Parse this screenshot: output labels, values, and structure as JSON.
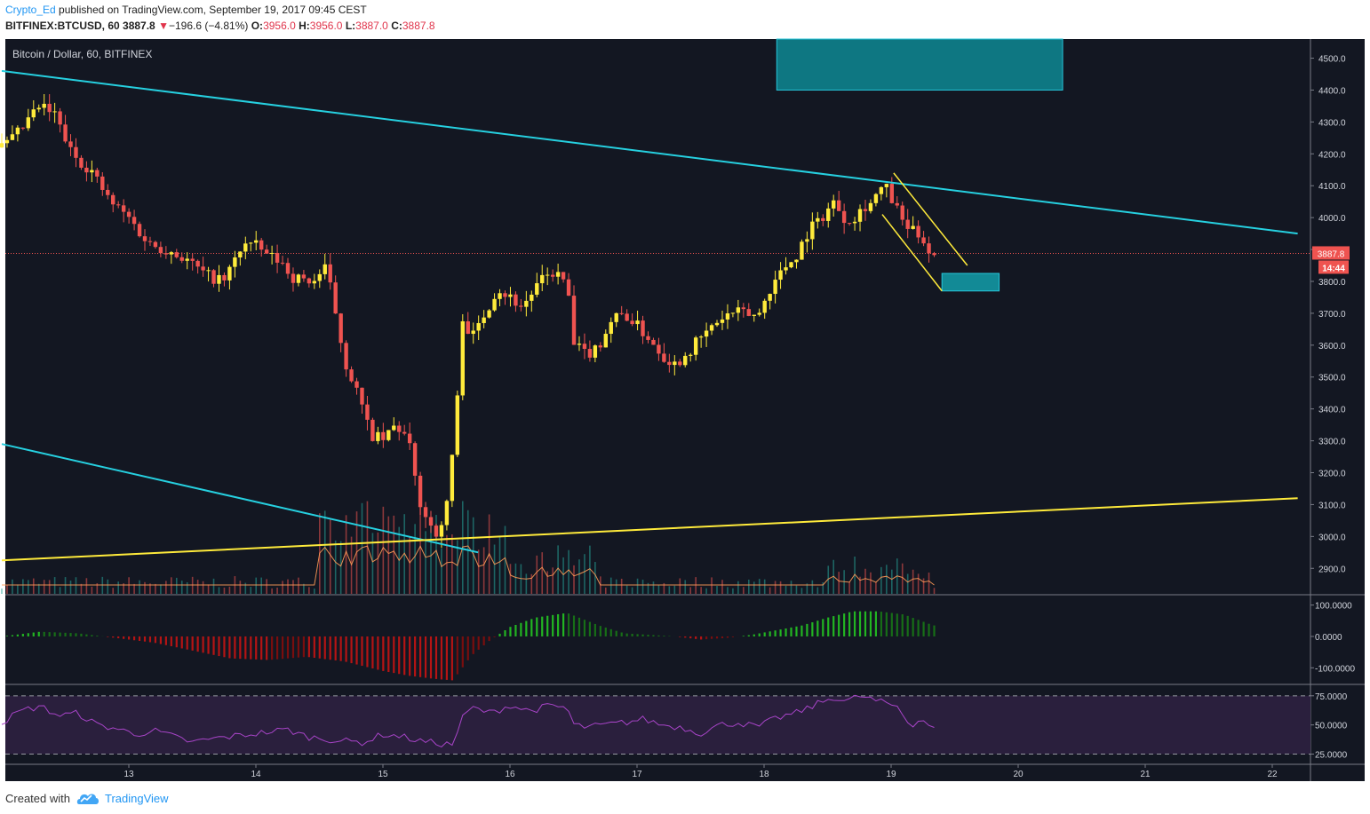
{
  "header": {
    "author": "Crypto_Ed",
    "published_text": "published on TradingView.com, September 19, 2017 09:45 CEST",
    "symbol": "BITFINEX:BTCUSD, 60",
    "last": "3887.8",
    "change": "−196.6 (−4.81%)",
    "ohlc": {
      "o_label": "O:",
      "o": "3956.0",
      "h_label": "H:",
      "h": "3956.0",
      "l_label": "L:",
      "l": "3887.0",
      "c_label": "C:",
      "c": "3887.8"
    }
  },
  "chart_title": "Bitcoin / Dollar, 60, BITFINEX",
  "price_tag": {
    "value": "3887.8",
    "countdown": "14:44"
  },
  "footer": {
    "created": "Created with",
    "brand": "TradingView"
  },
  "colors": {
    "background": "#131722",
    "up": "#ffeb3b",
    "down": "#ef5350",
    "trendline_cyan": "#26d0e0",
    "trendline_yellow": "#ffeb3b",
    "box_teal": "#0e7782",
    "rsi_band": "#2a1f3d",
    "rsi_line": "#a844c8",
    "macd_pos": "#1e9e1e",
    "macd_neg": "#a01010"
  },
  "chart_data": [
    {
      "type": "candlestick",
      "title": "Bitcoin / Dollar, 60, BITFINEX",
      "xlabel": "",
      "ylabel": "",
      "x_tick_labels": [
        "13",
        "14",
        "15",
        "16",
        "17",
        "18",
        "19",
        "20",
        "21",
        "22"
      ],
      "ylim": [
        2820,
        4560
      ],
      "y_tick_labels": [
        "4500.0",
        "4400.0",
        "4300.0",
        "4200.0",
        "4100.0",
        "4000.0",
        "3900.0",
        "3800.0",
        "3700.0",
        "3600.0",
        "3500.0",
        "3400.0",
        "3300.0",
        "3200.0",
        "3100.0",
        "3000.0",
        "2900.0"
      ],
      "y_ticks": [
        4500,
        4400,
        4300,
        4200,
        4100,
        4000,
        3900,
        3800,
        3700,
        3600,
        3500,
        3400,
        3300,
        3200,
        3100,
        3000,
        2900
      ],
      "close_path_days": [
        12.0,
        12.1,
        12.2,
        12.3,
        12.42,
        12.55,
        12.7,
        12.85,
        13.0,
        13.15,
        13.3,
        13.45,
        13.6,
        13.75,
        13.9,
        14.0,
        14.1,
        14.2,
        14.3,
        14.45,
        14.55,
        14.6,
        14.7,
        14.8,
        14.9,
        15.0,
        15.1,
        15.2,
        15.28,
        15.35,
        15.45,
        15.5,
        15.58,
        15.62,
        15.7,
        15.8,
        15.9,
        16.0,
        16.1,
        16.2,
        16.3,
        16.35,
        16.45,
        16.5,
        16.6,
        16.7,
        16.8,
        16.9,
        17.0,
        17.1,
        17.2,
        17.3,
        17.45,
        17.55,
        17.65,
        17.75,
        17.85,
        17.95,
        18.05,
        18.15,
        18.25,
        18.35,
        18.45,
        18.55,
        18.6,
        18.65,
        18.7,
        18.8,
        18.85,
        18.9,
        18.95,
        19.0,
        19.05,
        19.1,
        19.15,
        19.2,
        19.25,
        19.3,
        19.35
      ],
      "close_path_prices": [
        4220,
        4250,
        4300,
        4350,
        4320,
        4200,
        4150,
        4050,
        4000,
        3920,
        3900,
        3870,
        3820,
        3800,
        3920,
        3910,
        3880,
        3860,
        3810,
        3800,
        3840,
        3760,
        3550,
        3450,
        3320,
        3300,
        3350,
        3300,
        3120,
        3050,
        3000,
        3100,
        3380,
        3700,
        3620,
        3700,
        3780,
        3750,
        3720,
        3780,
        3820,
        3830,
        3790,
        3600,
        3570,
        3600,
        3680,
        3700,
        3660,
        3620,
        3570,
        3540,
        3600,
        3640,
        3680,
        3700,
        3700,
        3690,
        3780,
        3840,
        3880,
        3960,
        4000,
        4050,
        4020,
        3990,
        4000,
        4040,
        4050,
        4080,
        4100,
        4060,
        4020,
        3980,
        3960,
        3950,
        3940,
        3890,
        3888
      ],
      "series": [
        {
          "values_trend_desc_upper": [
            [
              12.0,
              4460
            ],
            [
              22.2,
              3950
            ]
          ]
        },
        {
          "values_trend_desc_lower": [
            [
              12.0,
              3290
            ],
            [
              15.75,
              2950
            ]
          ]
        },
        {
          "values_trend_asc": [
            [
              12.0,
              2925
            ],
            [
              22.2,
              3120
            ]
          ]
        },
        {
          "values_channel_upper": [
            [
              19.02,
              4140
            ],
            [
              19.6,
              3850
            ]
          ]
        },
        {
          "values_channel_lower": [
            [
              18.93,
              4010
            ],
            [
              19.4,
              3770
            ]
          ]
        }
      ],
      "target_zones": [
        {
          "price_range": [
            4400,
            4560
          ],
          "day_range": [
            18.1,
            20.35
          ]
        },
        {
          "price_range": [
            3770,
            3825
          ],
          "day_range": [
            19.4,
            19.85
          ]
        }
      ],
      "current_price_line": 3887.8
    },
    {
      "type": "bar",
      "title": "",
      "ylim": [
        -150,
        130
      ],
      "y_tick_labels": [
        "100.0000",
        "0.0000",
        "-100.0000"
      ],
      "y_ticks": [
        100,
        0,
        -100
      ],
      "x_days": [
        12.0,
        12.3,
        12.6,
        12.9,
        13.2,
        13.5,
        13.8,
        14.1,
        14.4,
        14.7,
        15.0,
        15.2,
        15.4,
        15.55,
        15.7,
        15.85,
        16.0,
        16.2,
        16.45,
        16.7,
        16.9,
        17.1,
        17.3,
        17.5,
        17.7,
        17.9,
        18.1,
        18.3,
        18.5,
        18.7,
        18.9,
        19.1,
        19.3,
        19.38
      ],
      "values": [
        0,
        15,
        10,
        -5,
        -20,
        -45,
        -70,
        -75,
        -65,
        -80,
        -110,
        -125,
        -135,
        -140,
        -60,
        -10,
        30,
        60,
        75,
        35,
        10,
        5,
        0,
        -10,
        -5,
        5,
        20,
        35,
        60,
        80,
        80,
        70,
        40,
        30
      ]
    },
    {
      "type": "line",
      "title": "",
      "ylim": [
        17,
        84
      ],
      "y_tick_labels": [
        "75.0000",
        "50.0000",
        "25.0000"
      ],
      "y_ticks": [
        75,
        50,
        25
      ],
      "band": [
        25,
        75
      ],
      "x_days": [
        12.0,
        12.15,
        12.3,
        12.45,
        12.6,
        12.75,
        12.9,
        13.05,
        13.2,
        13.35,
        13.5,
        13.65,
        13.8,
        13.95,
        14.1,
        14.25,
        14.4,
        14.55,
        14.7,
        14.85,
        15.0,
        15.15,
        15.3,
        15.45,
        15.55,
        15.62,
        15.7,
        15.85,
        16.0,
        16.15,
        16.3,
        16.45,
        16.5,
        16.6,
        16.75,
        16.9,
        17.05,
        17.2,
        17.35,
        17.5,
        17.65,
        17.8,
        17.95,
        18.1,
        18.25,
        18.4,
        18.55,
        18.65,
        18.75,
        18.9,
        19.05,
        19.15,
        19.25,
        19.35
      ],
      "values": [
        52,
        62,
        66,
        58,
        60,
        50,
        47,
        42,
        45,
        40,
        35,
        38,
        40,
        42,
        44,
        46,
        40,
        38,
        36,
        35,
        42,
        40,
        36,
        34,
        33,
        55,
        65,
        60,
        67,
        62,
        66,
        65,
        50,
        48,
        50,
        52,
        55,
        50,
        48,
        43,
        50,
        52,
        48,
        56,
        60,
        67,
        74,
        70,
        75,
        70,
        66,
        50,
        55,
        45
      ]
    }
  ]
}
